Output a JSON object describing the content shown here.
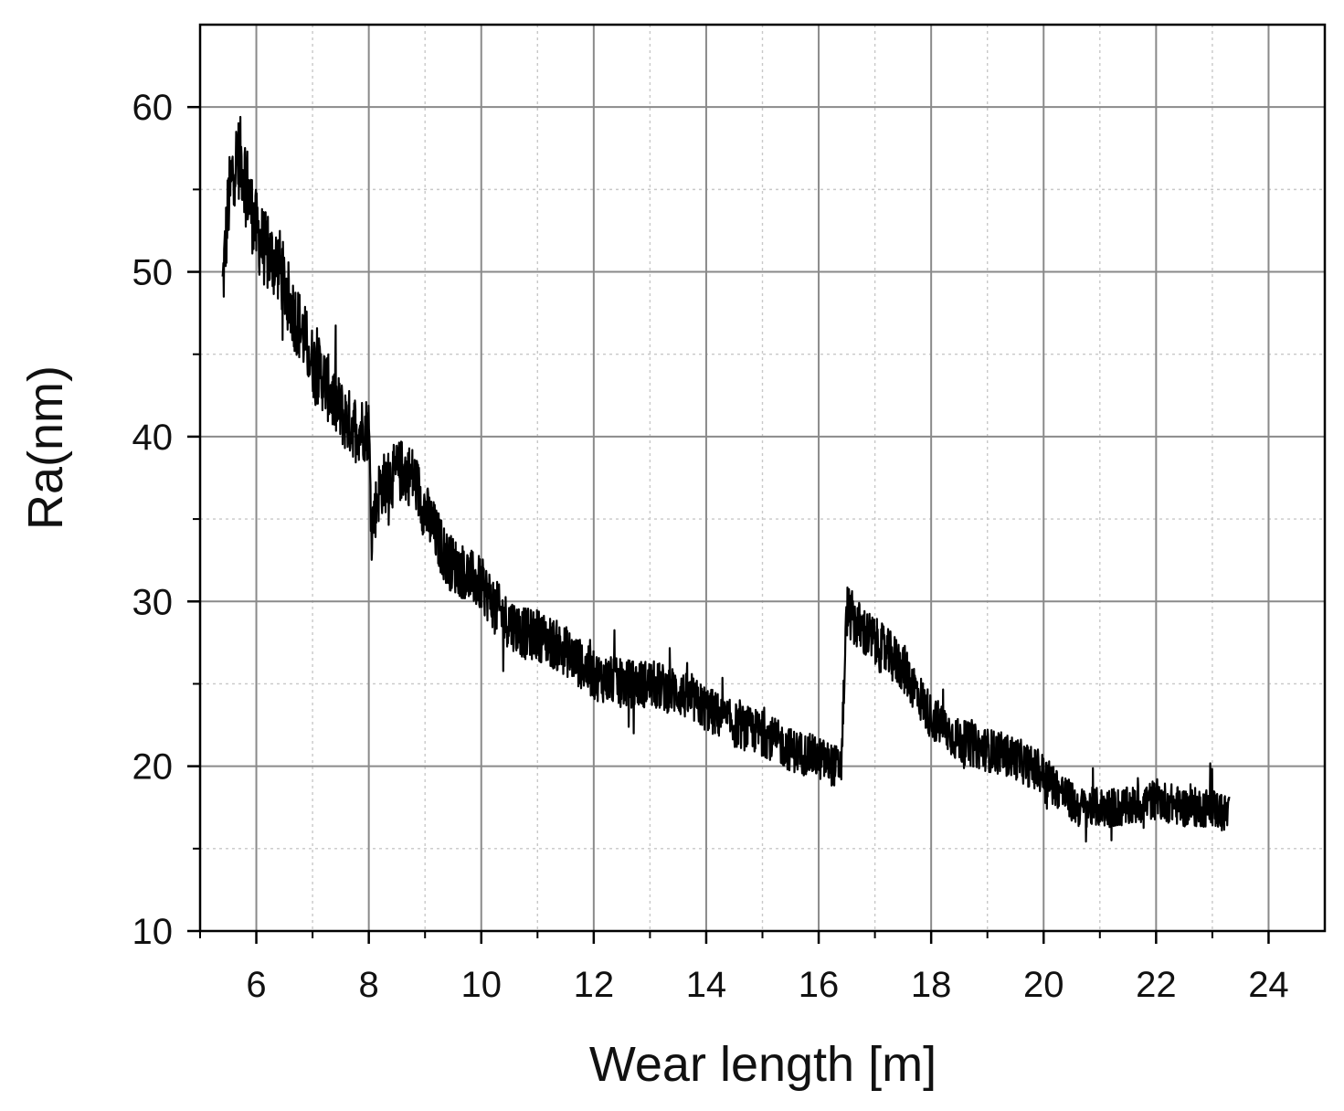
{
  "chart_data": {
    "type": "line",
    "title": "",
    "xlabel": "Wear length [m]",
    "ylabel": "Ra(nm)",
    "xlim": [
      5,
      25
    ],
    "ylim": [
      10,
      65
    ],
    "x_ticks": [
      "6",
      "8",
      "10",
      "12",
      "14",
      "16",
      "18",
      "20",
      "22",
      "24"
    ],
    "x_tick_values": [
      6,
      8,
      10,
      12,
      14,
      16,
      18,
      20,
      22,
      24
    ],
    "y_ticks": [
      "10",
      "20",
      "30",
      "40",
      "50",
      "60"
    ],
    "y_tick_values": [
      10,
      20,
      30,
      40,
      50,
      60
    ],
    "grid": true,
    "line_color": "#000000",
    "series": [
      {
        "x": [
          5.4,
          5.5,
          5.6,
          5.7,
          5.8,
          5.9,
          6.0,
          6.2,
          6.4,
          6.6,
          6.8,
          7.0,
          7.2,
          7.4,
          7.6,
          7.8,
          8.0,
          8.05,
          8.2,
          8.4,
          8.6,
          8.8,
          9.0,
          9.2,
          9.4,
          9.6,
          9.8,
          10.0,
          10.2,
          10.4,
          10.6,
          10.8,
          11.0,
          11.5,
          12.0,
          12.5,
          13.0,
          13.5,
          14.0,
          14.5,
          15.0,
          15.5,
          16.0,
          16.3,
          16.4,
          16.5,
          16.7,
          17.0,
          17.5,
          18.0,
          18.5,
          19.0,
          19.5,
          20.0,
          20.3,
          20.6,
          21.0,
          21.5,
          22.0,
          22.5,
          23.0,
          23.3
        ],
        "y": [
          49.0,
          54.0,
          56.5,
          57.0,
          56.0,
          54.0,
          52.5,
          51.0,
          50.5,
          48.0,
          46.5,
          44.5,
          43.5,
          42.0,
          41.0,
          40.5,
          40.5,
          34.5,
          37.0,
          37.5,
          38.0,
          37.5,
          35.5,
          34.0,
          32.5,
          32.0,
          31.5,
          31.0,
          30.0,
          29.0,
          28.5,
          28.0,
          28.0,
          27.0,
          25.5,
          25.0,
          25.0,
          24.5,
          23.5,
          22.5,
          22.0,
          21.0,
          20.5,
          20.0,
          20.0,
          29.5,
          28.5,
          27.5,
          26.0,
          23.0,
          21.5,
          21.0,
          20.5,
          19.5,
          18.5,
          17.5,
          17.5,
          17.5,
          18.0,
          17.5,
          17.5,
          17.0
        ]
      }
    ]
  }
}
